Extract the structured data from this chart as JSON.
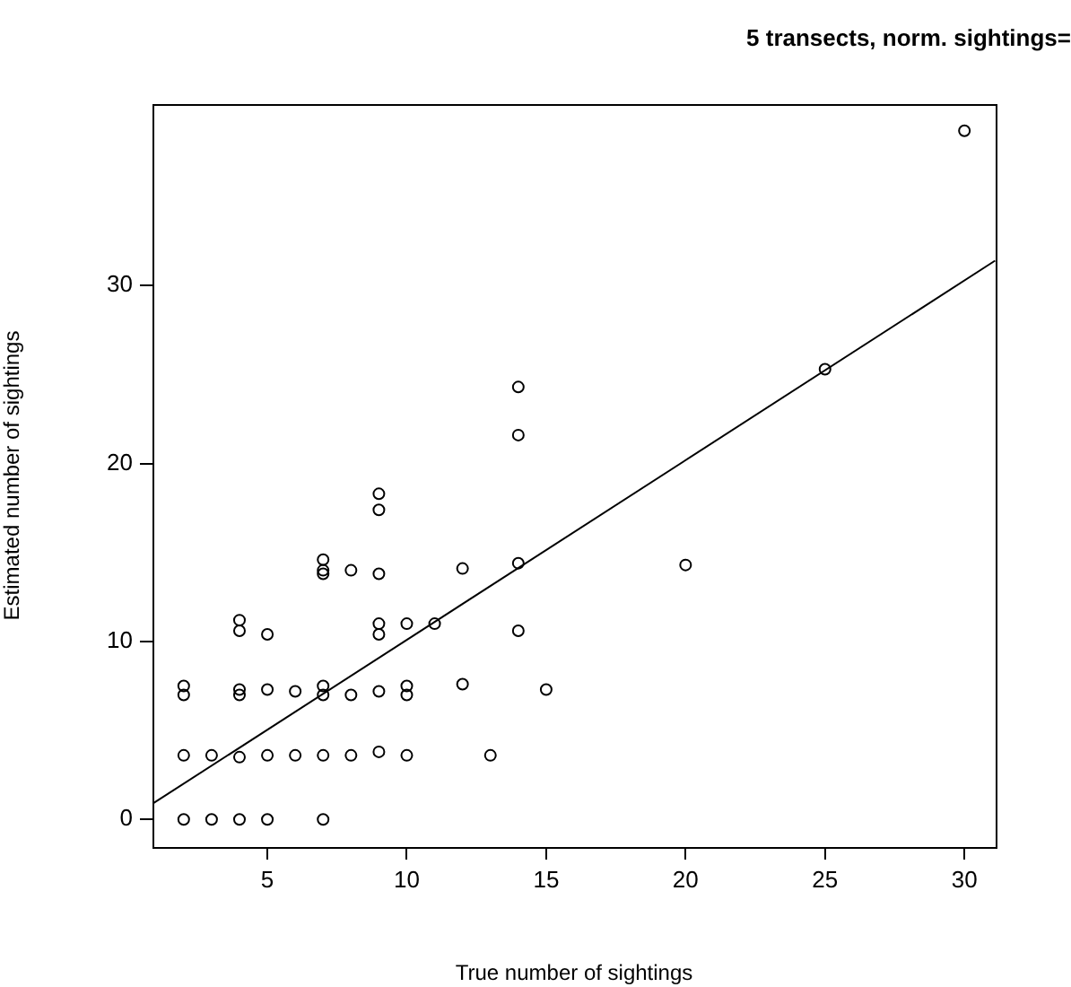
{
  "chart_data": {
    "type": "scatter",
    "title": "5 transects, norm. sightings=",
    "xlabel": "True number of sightings",
    "ylabel": "Estimated number of sightings",
    "xlim": [
      0.88,
      31.12
    ],
    "ylim": [
      -1.55,
      40.2
    ],
    "xticks": [
      5,
      10,
      15,
      20,
      25,
      30
    ],
    "yticks": [
      0,
      10,
      20,
      30
    ],
    "grid": false,
    "legend": false,
    "marker": "circle",
    "series": [
      {
        "type": "scatter",
        "color": "#000000",
        "x": [
          2,
          3,
          4,
          5,
          7,
          2,
          3,
          4,
          5,
          6,
          7,
          8,
          9,
          10,
          13,
          2,
          2,
          4,
          4,
          5,
          6,
          7,
          7,
          8,
          9,
          10,
          10,
          12,
          15,
          4,
          4,
          5,
          9,
          9,
          10,
          11,
          14,
          7,
          7,
          7,
          8,
          9,
          12,
          14,
          20,
          9,
          9,
          14,
          14,
          25,
          30
        ],
        "values": [
          0,
          0,
          0,
          0,
          0,
          3.6,
          3.6,
          3.5,
          3.6,
          3.6,
          3.6,
          3.6,
          3.8,
          3.6,
          3.6,
          7.0,
          7.5,
          7.0,
          7.3,
          7.3,
          7.2,
          7.0,
          7.5,
          7.0,
          7.2,
          7.0,
          7.5,
          7.6,
          7.3,
          10.6,
          11.2,
          10.4,
          10.4,
          11.0,
          11.0,
          11.0,
          10.6,
          13.8,
          14.0,
          14.6,
          14.0,
          13.8,
          14.1,
          14.4,
          14.3,
          17.4,
          18.3,
          21.6,
          24.3,
          25.3,
          38.7
        ]
      },
      {
        "type": "line",
        "color": "#000000",
        "marker": "none",
        "x": [
          0.9,
          31.1
        ],
        "values": [
          0.9,
          31.4
        ]
      }
    ]
  }
}
